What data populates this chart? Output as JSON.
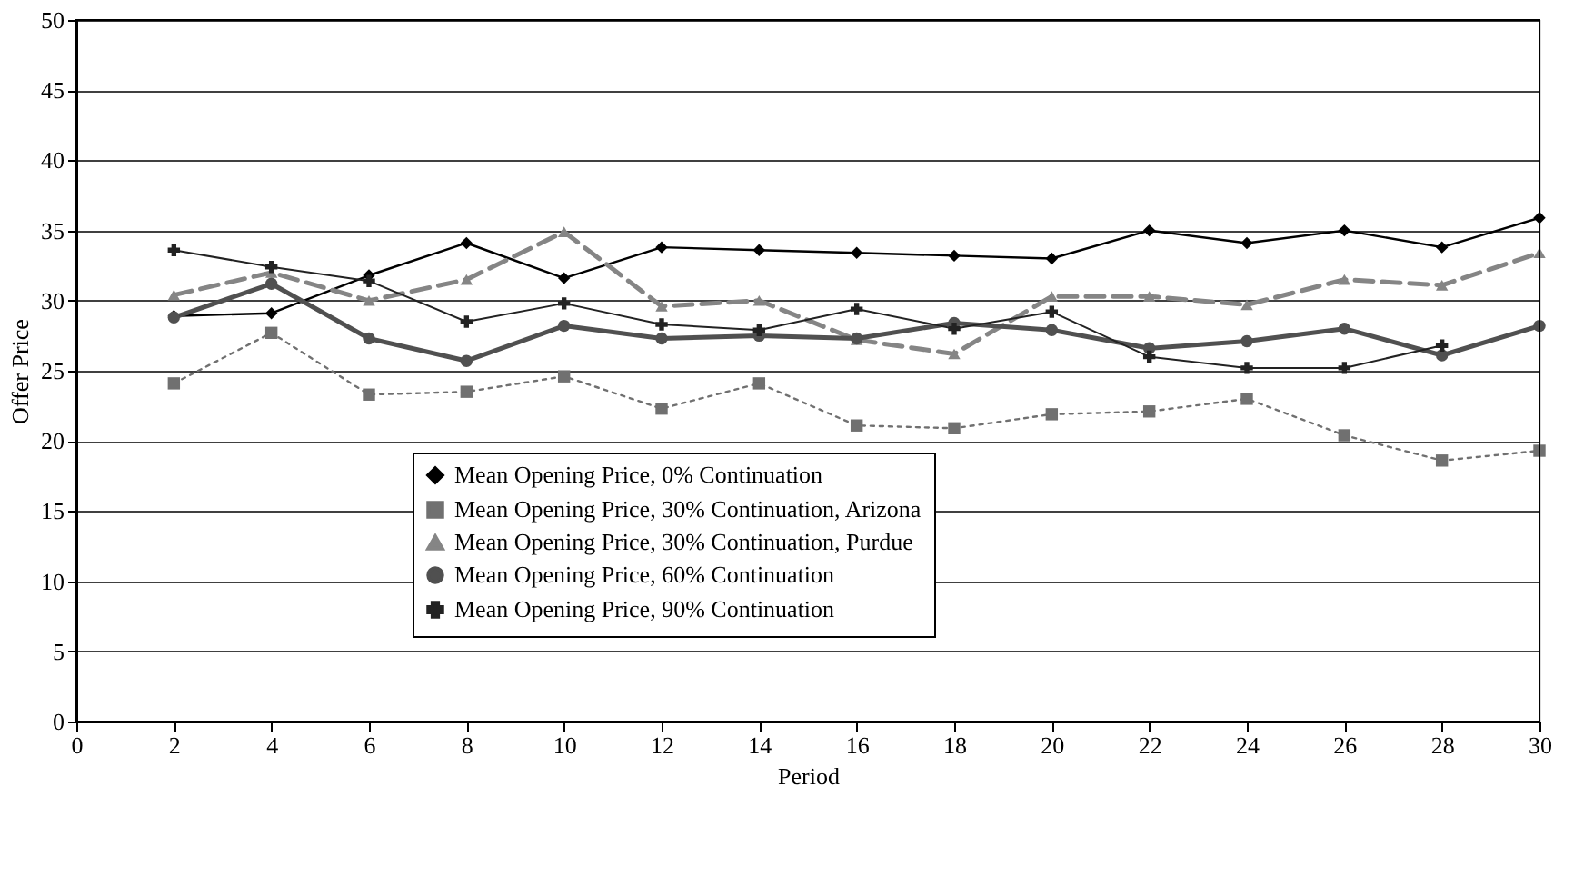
{
  "chart_data": {
    "type": "line",
    "xlabel": "Period",
    "ylabel": "Offer Price",
    "x": [
      2,
      4,
      6,
      8,
      10,
      12,
      14,
      16,
      18,
      20,
      22,
      24,
      26,
      28,
      30
    ],
    "xlim": [
      0,
      30
    ],
    "xticks": [
      0,
      2,
      4,
      6,
      8,
      10,
      12,
      14,
      16,
      18,
      20,
      22,
      24,
      26,
      28,
      30
    ],
    "ylim": [
      0,
      50
    ],
    "yticks": [
      0,
      5,
      10,
      15,
      20,
      25,
      30,
      35,
      40,
      45,
      50
    ],
    "grid": "y",
    "legend": "bottom left",
    "series": [
      {
        "name": "Mean Opening Price, 0% Continuation",
        "color": "#000000",
        "marker": "diamond",
        "line_style": "solid",
        "values": [
          28.9,
          29.1,
          31.8,
          34.1,
          31.6,
          33.8,
          33.6,
          33.4,
          33.2,
          33.0,
          35.0,
          34.1,
          35.0,
          33.8,
          35.9
        ]
      },
      {
        "name": "Mean Opening Price, 30% Continuation, Arizona",
        "color": "#707070",
        "marker": "square",
        "line_style": "dotted",
        "values": [
          24.1,
          27.7,
          23.3,
          23.5,
          24.6,
          22.3,
          24.1,
          21.1,
          20.9,
          21.9,
          22.1,
          23.0,
          20.4,
          18.6,
          19.3
        ]
      },
      {
        "name": "Mean Opening Price, 30% Continuation, Purdue",
        "color": "#858585",
        "marker": "triangle",
        "line_style": "dashed",
        "values": [
          30.4,
          32.0,
          30.0,
          31.5,
          34.9,
          29.6,
          30.0,
          27.2,
          26.2,
          30.3,
          30.3,
          29.7,
          31.5,
          31.1,
          33.4
        ]
      },
      {
        "name": "Mean Opening Price, 60% Continuation",
        "color": "#505050",
        "marker": "circle",
        "line_style": "solid",
        "values": [
          28.8,
          31.2,
          27.3,
          25.7,
          28.2,
          27.3,
          27.5,
          27.3,
          28.4,
          27.9,
          26.6,
          27.1,
          28.0,
          26.1,
          28.2
        ]
      },
      {
        "name": "Mean Opening Price, 90% Continuation",
        "color": "#222222",
        "marker": "cross",
        "line_style": "solid",
        "values": [
          33.6,
          32.4,
          31.4,
          28.5,
          29.8,
          28.3,
          27.9,
          29.4,
          28.0,
          29.2,
          26.0,
          25.2,
          25.2,
          26.8,
          null
        ]
      }
    ]
  }
}
